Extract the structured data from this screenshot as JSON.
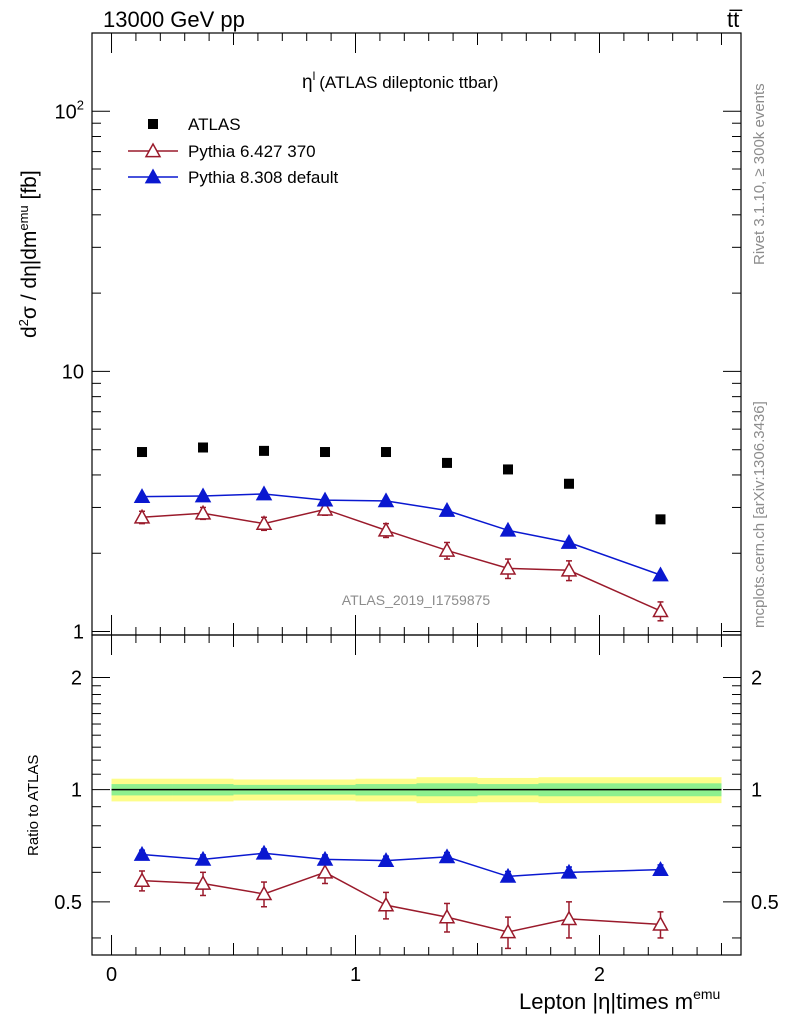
{
  "header": {
    "energy_label": "13000 GeV pp",
    "process_label": "tt̅"
  },
  "chart_data": [
    {
      "type": "scatter",
      "panel": "main",
      "title_main": "η",
      "title_sup": "l",
      "title_rest": "(ATLAS dileptonic ttbar)",
      "ylabel": "d²σ / dη|dm^emu [fb]",
      "ylabel_main": "d",
      "ylabel_sup1": "2",
      "ylabel_mid": "σ / dη|dm",
      "ylabel_sup2": "emu",
      "ylabel_end": " [fb]",
      "y_scale": "log",
      "ylim": [
        0.97,
        200
      ],
      "xlim": [
        -0.08,
        2.58
      ],
      "y_ticks": [
        {
          "value": 1,
          "label": "1"
        },
        {
          "value": 10,
          "label": "10"
        },
        {
          "value": 100,
          "label": "10",
          "sup": "2"
        }
      ],
      "x": [
        0.125,
        0.375,
        0.625,
        0.875,
        1.125,
        1.375,
        1.625,
        1.875,
        2.25
      ],
      "series": [
        {
          "name": "ATLAS",
          "marker": "square",
          "color": "#000000",
          "values": [
            4.9,
            5.1,
            4.95,
            4.9,
            4.9,
            4.45,
            4.2,
            3.7,
            2.7
          ]
        },
        {
          "name": "Pythia 6.427 370",
          "marker": "open-triangle",
          "color": "#9a1a2b",
          "values": [
            2.75,
            2.85,
            2.6,
            2.95,
            2.45,
            2.05,
            1.75,
            1.72,
            1.2
          ],
          "errors": [
            0.15,
            0.15,
            0.15,
            0.15,
            0.15,
            0.15,
            0.15,
            0.15,
            0.1
          ]
        },
        {
          "name": "Pythia 8.308 default",
          "marker": "filled-triangle",
          "color": "#0a18d0",
          "values": [
            3.3,
            3.32,
            3.38,
            3.2,
            3.18,
            2.92,
            2.45,
            2.2,
            1.65
          ]
        }
      ],
      "legend_position": "top-left",
      "watermark": "ATLAS_2019_I1759875"
    },
    {
      "type": "line",
      "panel": "ratio",
      "ylabel": "Ratio to ATLAS",
      "xlabel_main": "Lepton |η|times m",
      "xlabel_sup": "emu",
      "y_scale": "log",
      "ylim": [
        0.36,
        2.6
      ],
      "y_ticks": [
        {
          "value": 0.5,
          "label": "0.5"
        },
        {
          "value": 1,
          "label": "1"
        },
        {
          "value": 2,
          "label": "2"
        }
      ],
      "x_ticks": [
        {
          "value": 0,
          "label": "0"
        },
        {
          "value": 1,
          "label": "1"
        },
        {
          "value": 2,
          "label": "2"
        }
      ],
      "x": [
        0.125,
        0.375,
        0.625,
        0.875,
        1.125,
        1.375,
        1.625,
        1.875,
        2.25
      ],
      "band_edges": [
        0,
        0.25,
        0.5,
        0.75,
        1.0,
        1.25,
        1.5,
        1.75,
        2.0,
        2.5
      ],
      "band_yellow": [
        0.07,
        0.07,
        0.065,
        0.065,
        0.07,
        0.08,
        0.075,
        0.08,
        0.08
      ],
      "band_green": [
        0.035,
        0.035,
        0.03,
        0.03,
        0.035,
        0.04,
        0.035,
        0.04,
        0.04
      ],
      "series": [
        {
          "name": "Pythia 6.427 370",
          "color": "#9a1a2b",
          "values": [
            0.57,
            0.56,
            0.525,
            0.6,
            0.49,
            0.455,
            0.415,
            0.45,
            0.435
          ],
          "errors": [
            0.035,
            0.04,
            0.04,
            0.04,
            0.04,
            0.04,
            0.04,
            0.05,
            0.035
          ]
        },
        {
          "name": "Pythia 8.308 default",
          "color": "#0a18d0",
          "values": [
            0.67,
            0.65,
            0.675,
            0.65,
            0.645,
            0.66,
            0.585,
            0.6,
            0.61
          ],
          "errors": [
            0.018,
            0.018,
            0.018,
            0.018,
            0.018,
            0.018,
            0.018,
            0.02,
            0.018
          ]
        }
      ]
    }
  ],
  "side_text": {
    "rivet": "Rivet 3.1.10, ≥ 300k events",
    "mcplots": "mcplots.cern.ch [arXiv:1306.3436]"
  }
}
